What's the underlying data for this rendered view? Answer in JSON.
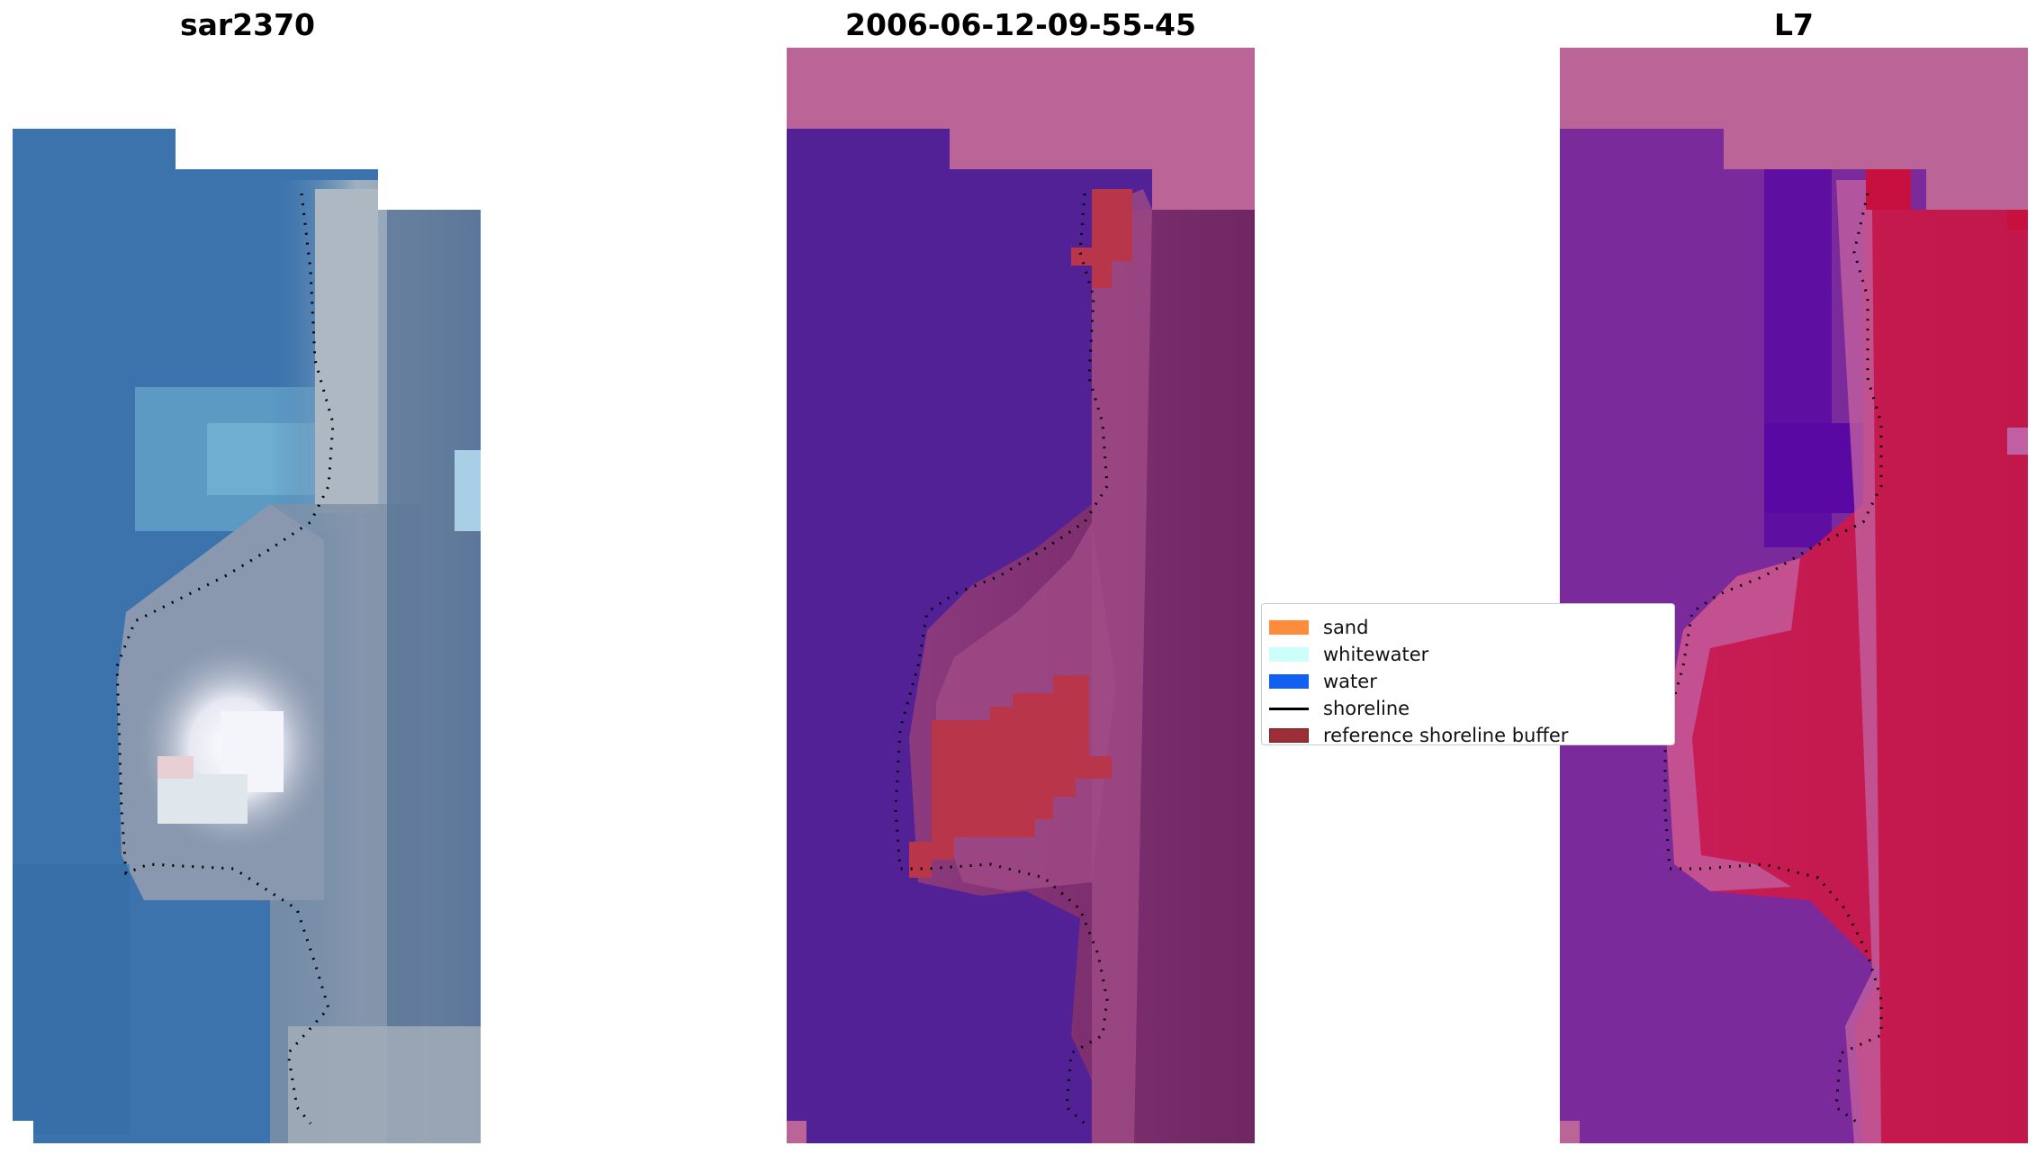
{
  "panels": {
    "left_title": "sar2370",
    "middle_title": "2006-06-12-09-55-45",
    "right_title": "L7"
  },
  "legend": {
    "items": [
      {
        "label": "sand",
        "color": "#fd8d3c",
        "kind": "patch"
      },
      {
        "label": "whitewater",
        "color": "#ccfffa",
        "kind": "patch"
      },
      {
        "label": "water",
        "color": "#1160f2",
        "kind": "patch"
      },
      {
        "label": "shoreline",
        "color": "#000000",
        "kind": "line"
      },
      {
        "label": "reference shoreline buffer",
        "color": "#9b2e37",
        "kind": "patch"
      }
    ]
  }
}
